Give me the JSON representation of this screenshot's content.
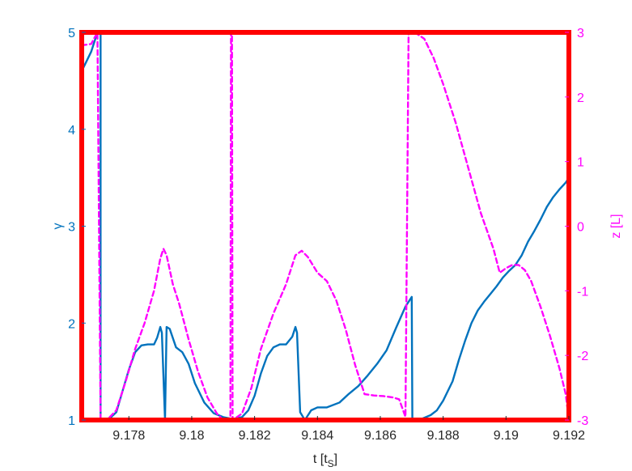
{
  "chart_data": {
    "type": "line",
    "xlabel": "t [t",
    "xlabel_sub": "S",
    "xlabel_close": "]",
    "ylabel_left": "γ",
    "ylabel_right": "z [L]",
    "xlim": [
      9.1765,
      9.192
    ],
    "ylim_left": [
      1,
      5
    ],
    "ylim_right": [
      -3,
      3
    ],
    "x_ticks": [
      9.178,
      9.18,
      9.182,
      9.184,
      9.186,
      9.188,
      9.19,
      9.192
    ],
    "x_tick_labels": [
      "9.178",
      "9.18",
      "9.182",
      "9.184",
      "9.186",
      "9.188",
      "9.19",
      "9.192"
    ],
    "y_left_ticks": [
      1,
      2,
      3,
      4,
      5
    ],
    "y_left_tick_labels": [
      "1",
      "2",
      "3",
      "4",
      "5"
    ],
    "y_right_ticks": [
      -3,
      -2,
      -1,
      0,
      1,
      2,
      3
    ],
    "y_right_tick_labels": [
      "-3",
      "-2",
      "-1",
      "0",
      "1",
      "2",
      "3"
    ],
    "colors": {
      "gamma": "#0072bd",
      "z": "#ff00ff",
      "frame": "#ff0000",
      "text": "#262626"
    },
    "series": [
      {
        "axis": "left",
        "style": "solid",
        "points": [
          [
            9.1765,
            4.6
          ],
          [
            9.1768,
            4.8
          ],
          [
            9.177,
            5.0
          ],
          [
            9.1771,
            4.98
          ],
          [
            9.1771,
            1.0
          ],
          [
            9.1774,
            1.02
          ],
          [
            9.1776,
            1.08
          ],
          [
            9.1778,
            1.3
          ],
          [
            9.178,
            1.52
          ],
          [
            9.1782,
            1.7
          ],
          [
            9.1784,
            1.77
          ],
          [
            9.1786,
            1.78
          ],
          [
            9.1788,
            1.78
          ],
          [
            9.1789,
            1.85
          ],
          [
            9.179,
            1.96
          ],
          [
            9.17905,
            1.9
          ],
          [
            9.1791,
            1.45
          ],
          [
            9.17915,
            1.0
          ],
          [
            9.1792,
            1.96
          ],
          [
            9.1793,
            1.94
          ],
          [
            9.1795,
            1.75
          ],
          [
            9.1797,
            1.7
          ],
          [
            9.1799,
            1.58
          ],
          [
            9.1801,
            1.38
          ],
          [
            9.1804,
            1.18
          ],
          [
            9.1807,
            1.07
          ],
          [
            9.181,
            1.03
          ],
          [
            9.1813,
            1.01
          ],
          [
            9.1816,
            1.03
          ],
          [
            9.1818,
            1.1
          ],
          [
            9.182,
            1.25
          ],
          [
            9.1822,
            1.48
          ],
          [
            9.1824,
            1.66
          ],
          [
            9.1826,
            1.75
          ],
          [
            9.1828,
            1.78
          ],
          [
            9.183,
            1.78
          ],
          [
            9.1832,
            1.86
          ],
          [
            9.1833,
            1.96
          ],
          [
            9.18335,
            1.9
          ],
          [
            9.18345,
            1.08
          ],
          [
            9.1836,
            1.0
          ],
          [
            9.1838,
            1.1
          ],
          [
            9.184,
            1.13
          ],
          [
            9.1843,
            1.13
          ],
          [
            9.1847,
            1.18
          ],
          [
            9.185,
            1.27
          ],
          [
            9.1853,
            1.35
          ],
          [
            9.1856,
            1.46
          ],
          [
            9.1859,
            1.58
          ],
          [
            9.1862,
            1.72
          ],
          [
            9.1865,
            1.95
          ],
          [
            9.1868,
            2.17
          ],
          [
            9.187,
            2.27
          ],
          [
            9.18702,
            1.0
          ],
          [
            9.1873,
            1.01
          ],
          [
            9.1876,
            1.05
          ],
          [
            9.1878,
            1.1
          ],
          [
            9.188,
            1.2
          ],
          [
            9.1883,
            1.4
          ],
          [
            9.1885,
            1.62
          ],
          [
            9.1887,
            1.82
          ],
          [
            9.1889,
            2.0
          ],
          [
            9.1891,
            2.13
          ],
          [
            9.1893,
            2.22
          ],
          [
            9.1895,
            2.3
          ],
          [
            9.1897,
            2.38
          ],
          [
            9.1899,
            2.47
          ],
          [
            9.1901,
            2.54
          ],
          [
            9.1903,
            2.6
          ],
          [
            9.1905,
            2.7
          ],
          [
            9.1907,
            2.84
          ],
          [
            9.1909,
            2.95
          ],
          [
            9.1911,
            3.07
          ],
          [
            9.1913,
            3.2
          ],
          [
            9.1915,
            3.3
          ],
          [
            9.1917,
            3.38
          ],
          [
            9.1919,
            3.45
          ],
          [
            9.192,
            3.5
          ],
          [
            9.19202,
            1.0
          ]
        ]
      },
      {
        "axis": "right",
        "style": "dashed",
        "points": [
          [
            9.1765,
            2.8
          ],
          [
            9.1768,
            2.82
          ],
          [
            9.177,
            3.0
          ],
          [
            9.1771,
            -3.0
          ],
          [
            9.1773,
            -3.0
          ],
          [
            9.1776,
            -2.85
          ],
          [
            9.1779,
            -2.4
          ],
          [
            9.1782,
            -1.9
          ],
          [
            9.1785,
            -1.5
          ],
          [
            9.1788,
            -1.0
          ],
          [
            9.179,
            -0.5
          ],
          [
            9.1791,
            -0.35
          ],
          [
            9.1792,
            -0.45
          ],
          [
            9.1794,
            -0.9
          ],
          [
            9.1796,
            -1.2
          ],
          [
            9.1799,
            -1.75
          ],
          [
            9.1802,
            -2.25
          ],
          [
            9.1805,
            -2.65
          ],
          [
            9.1808,
            -2.9
          ],
          [
            9.181,
            -3.0
          ],
          [
            9.18123,
            -3.0
          ],
          [
            9.18125,
            3.0
          ],
          [
            9.18128,
            3.0
          ],
          [
            9.1813,
            -3.0
          ],
          [
            9.1816,
            -2.9
          ],
          [
            9.1819,
            -2.5
          ],
          [
            9.1822,
            -1.9
          ],
          [
            9.1826,
            -1.35
          ],
          [
            9.183,
            -0.9
          ],
          [
            9.1833,
            -0.45
          ],
          [
            9.1835,
            -0.38
          ],
          [
            9.1837,
            -0.48
          ],
          [
            9.184,
            -0.72
          ],
          [
            9.1843,
            -0.85
          ],
          [
            9.1846,
            -1.15
          ],
          [
            9.1849,
            -1.6
          ],
          [
            9.1852,
            -2.15
          ],
          [
            9.1855,
            -2.6
          ],
          [
            9.1858,
            -2.62
          ],
          [
            9.1861,
            -2.63
          ],
          [
            9.1864,
            -2.65
          ],
          [
            9.1866,
            -2.68
          ],
          [
            9.1868,
            -2.95
          ],
          [
            9.1869,
            3.0
          ],
          [
            9.1871,
            3.0
          ],
          [
            9.1874,
            2.9
          ],
          [
            9.1877,
            2.6
          ],
          [
            9.188,
            2.2
          ],
          [
            9.1884,
            1.6
          ],
          [
            9.1888,
            0.9
          ],
          [
            9.1892,
            0.2
          ],
          [
            9.1896,
            -0.35
          ],
          [
            9.1898,
            -0.72
          ],
          [
            9.19,
            -0.65
          ],
          [
            9.1902,
            -0.6
          ],
          [
            9.1904,
            -0.6
          ],
          [
            9.1906,
            -0.68
          ],
          [
            9.1908,
            -0.85
          ],
          [
            9.1911,
            -1.25
          ],
          [
            9.1914,
            -1.7
          ],
          [
            9.1917,
            -2.2
          ],
          [
            9.1919,
            -2.6
          ],
          [
            9.192,
            -3.0
          ]
        ]
      }
    ]
  }
}
